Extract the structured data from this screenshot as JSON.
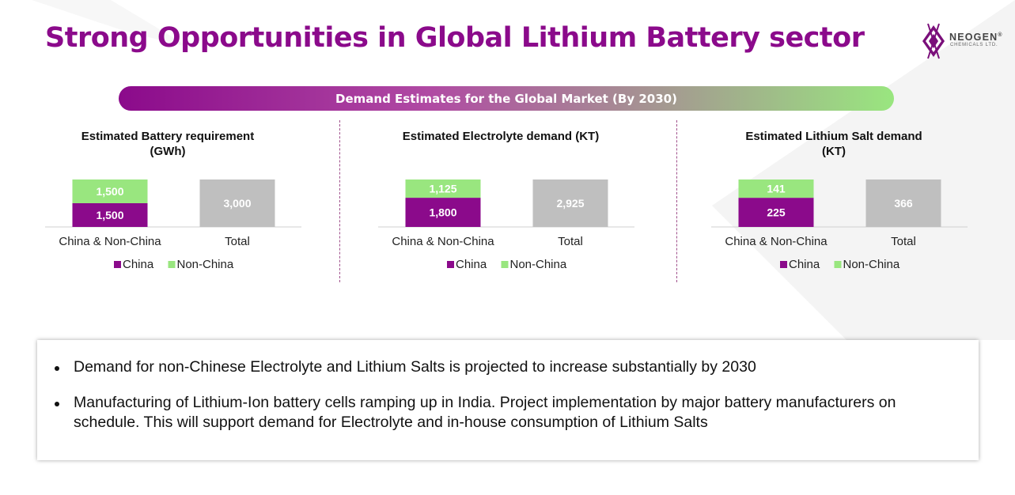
{
  "page": {
    "title": "Strong Opportunities in Global Lithium Battery sector",
    "logo": {
      "name": "NEOGEN",
      "registered": "®",
      "subtitle": "CHEMICALS LTD."
    },
    "banner": "Demand Estimates for the Global Market (By 2030)",
    "bullets": [
      "Demand for non-Chinese Electrolyte and Lithium Salts is projected to increase substantially by 2030",
      "Manufacturing of Lithium-Ion battery cells ramping up in India. Project implementation by major battery manufacturers on schedule. This will support demand for Electrolyte and in-house consumption of Lithium Salts"
    ]
  },
  "colors": {
    "title": "#8b0a8b",
    "china": "#8b0a8b",
    "non_china": "#99e67f",
    "total": "#bfbfbf",
    "banner_start": "#8b0a8b",
    "banner_end": "#99e67f",
    "divider": "#a0508c"
  },
  "chart_data": [
    {
      "type": "bar",
      "stacked": true,
      "title": [
        "Estimated Battery requirement",
        "(GWh)"
      ],
      "categories": [
        "China & Non-China",
        "Total"
      ],
      "series": [
        {
          "name": "China",
          "values": [
            1500,
            null
          ],
          "labels": [
            "1,500",
            null
          ]
        },
        {
          "name": "Non-China",
          "values": [
            1500,
            null
          ],
          "labels": [
            "1,500",
            null
          ]
        },
        {
          "name": "Total",
          "values": [
            null,
            3000
          ],
          "labels": [
            null,
            "3,000"
          ]
        }
      ],
      "legend": [
        "China",
        "Non-China"
      ],
      "ylim": [
        0,
        3000
      ]
    },
    {
      "type": "bar",
      "stacked": true,
      "title": [
        "Estimated Electrolyte demand (KT)"
      ],
      "categories": [
        "China & Non-China",
        "Total"
      ],
      "series": [
        {
          "name": "China",
          "values": [
            1800,
            null
          ],
          "labels": [
            "1,800",
            null
          ]
        },
        {
          "name": "Non-China",
          "values": [
            1125,
            null
          ],
          "labels": [
            "1,125",
            null
          ]
        },
        {
          "name": "Total",
          "values": [
            null,
            2925
          ],
          "labels": [
            null,
            "2,925"
          ]
        }
      ],
      "legend": [
        "China",
        "Non-China"
      ],
      "ylim": [
        0,
        2925
      ]
    },
    {
      "type": "bar",
      "stacked": true,
      "title": [
        "Estimated Lithium Salt demand",
        "(KT)"
      ],
      "categories": [
        "China & Non-China",
        "Total"
      ],
      "series": [
        {
          "name": "China",
          "values": [
            225,
            null
          ],
          "labels": [
            "225",
            null
          ]
        },
        {
          "name": "Non-China",
          "values": [
            141,
            null
          ],
          "labels": [
            "141",
            null
          ]
        },
        {
          "name": "Total",
          "values": [
            null,
            366
          ],
          "labels": [
            null,
            "366"
          ]
        }
      ],
      "legend": [
        "China",
        "Non-China"
      ],
      "ylim": [
        0,
        366
      ]
    }
  ]
}
